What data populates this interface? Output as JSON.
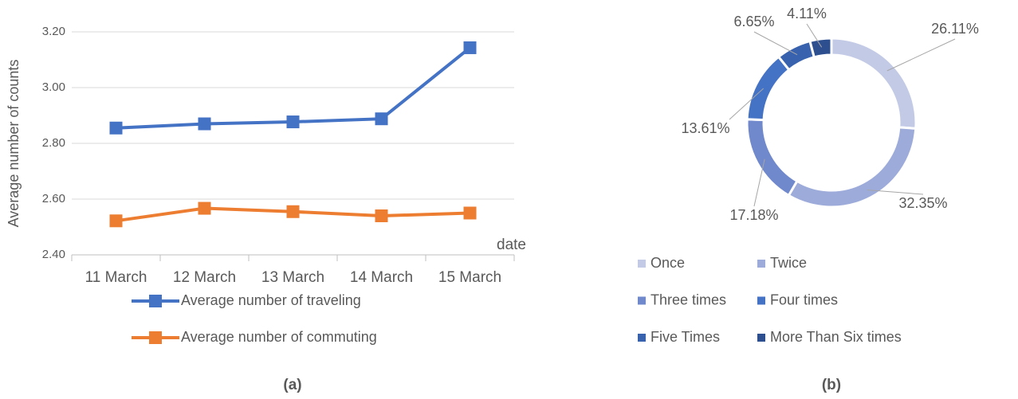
{
  "chart_data": [
    {
      "type": "line",
      "panel_label": "(a)",
      "y_label": "Average number of counts",
      "x_label": "date",
      "categories": [
        "11 March",
        "12 March",
        "13 March",
        "14 March",
        "15 March"
      ],
      "series": [
        {
          "name": "Average number of traveling",
          "color": "#4472c4",
          "values": [
            2.855,
            2.87,
            2.877,
            2.888,
            3.143
          ]
        },
        {
          "name": "Average number of commuting",
          "color": "#ed7d31",
          "values": [
            2.522,
            2.567,
            2.555,
            2.54,
            2.55
          ]
        }
      ],
      "ylim": [
        2.4,
        3.2
      ],
      "yticks": [
        {
          "value": 2.4,
          "label": "2.40"
        },
        {
          "value": 2.6,
          "label": "2.60"
        },
        {
          "value": 2.8,
          "label": "2.80"
        },
        {
          "value": 3.0,
          "label": "3.00"
        },
        {
          "value": 3.2,
          "label": "3.20"
        }
      ],
      "grid": true
    },
    {
      "type": "donut",
      "panel_label": "(b)",
      "categories": [
        "Once",
        "Twice",
        "Three times",
        "Four times",
        "Five Times",
        "More Than Six times"
      ],
      "values": [
        26.11,
        32.35,
        17.18,
        13.61,
        6.65,
        4.11
      ],
      "value_labels": [
        "26.11%",
        "32.35%",
        "17.18%",
        "13.61%",
        "6.65%",
        "4.11%"
      ],
      "colors": [
        "#c3cae6",
        "#9dabda",
        "#7088cc",
        "#4472c4",
        "#3862ad",
        "#2d4f8f"
      ]
    }
  ]
}
